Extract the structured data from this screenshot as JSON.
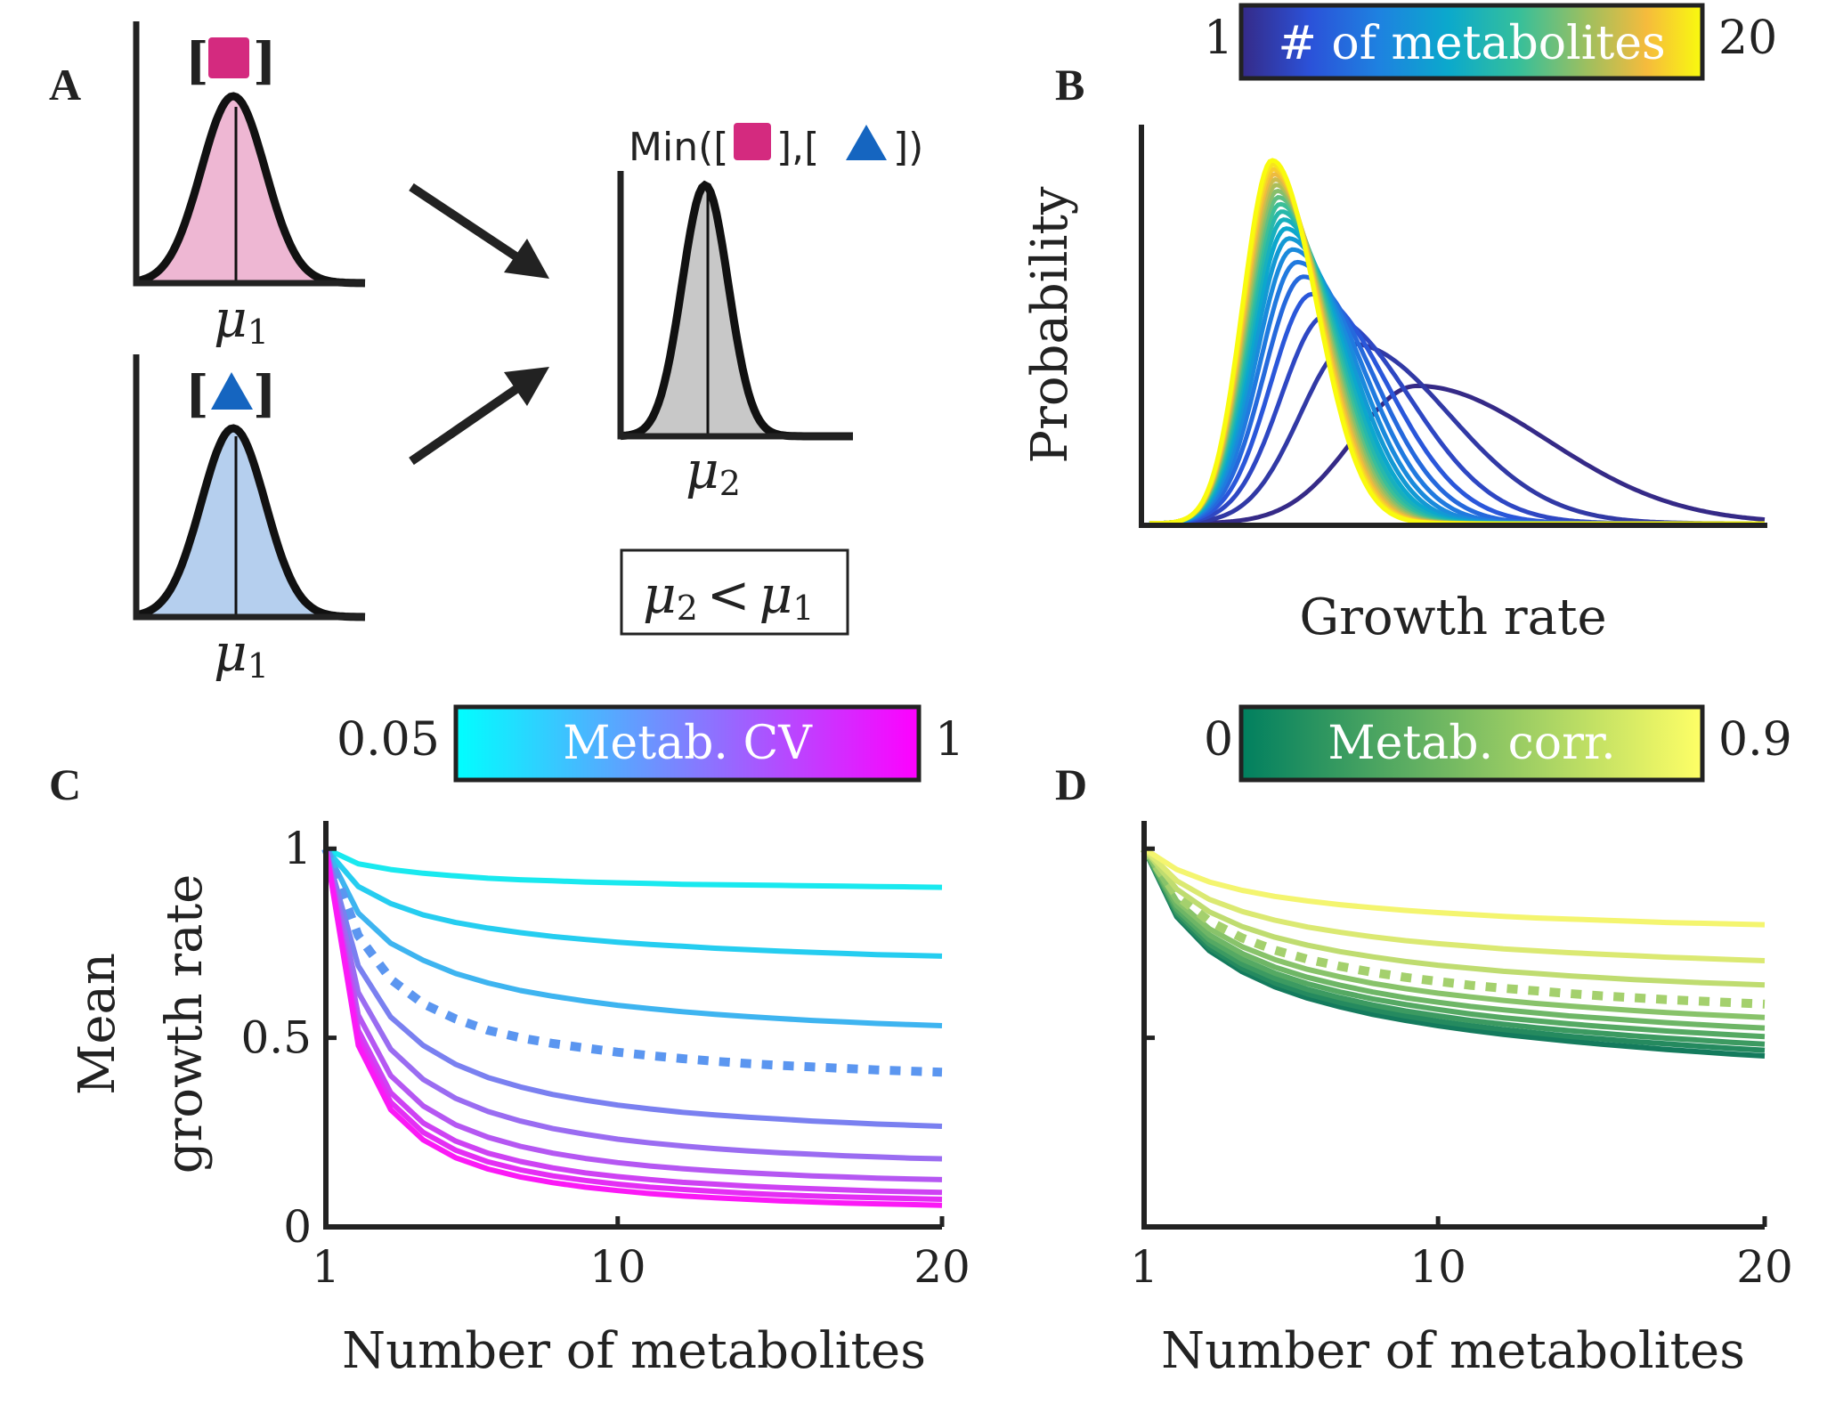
{
  "panels": {
    "A": {
      "letter": "A",
      "top_label": "[",
      "top_label_close": "]",
      "bottom_label": "[",
      "bottom_label_close": "]",
      "mu1_top": "μ",
      "mu1_top_sub": "1",
      "mu1_bottom": "μ",
      "mu1_bottom_sub": "1",
      "min_label_start": "Min([",
      "min_label_mid": "],[",
      "min_label_end": "])",
      "mu2": "μ",
      "mu2_sub": "2",
      "inequality_left": "μ",
      "inequality_left_sub": "2",
      "inequality_op": "<",
      "inequality_right": "μ",
      "inequality_right_sub": "1",
      "colors": {
        "pink": "#d42a7f",
        "pink_fill": "#eeb7d3",
        "blue": "#1565c0",
        "blue_fill": "#b5cfee",
        "gray_fill": "#c8c8c8"
      },
      "icons": [
        "square-icon",
        "triangle-icon",
        "arrow-icon"
      ]
    },
    "B": {
      "letter": "B",
      "colorbar": {
        "min": "1",
        "max": "20",
        "label": "# of metabolites"
      },
      "chart_data": {
        "type": "line",
        "xlabel": "Growth rate",
        "ylabel": "Probability",
        "series_count": 20,
        "colormap": "parula",
        "n_range": [
          1,
          20
        ],
        "note_axes": "no tick labels"
      }
    },
    "C": {
      "letter": "C",
      "colorbar": {
        "min": "0.05",
        "max": "1",
        "label": "Metab. CV"
      },
      "chart_data": {
        "type": "line",
        "xlabel": "Number of metabolites",
        "ylabel_line1": "Mean",
        "ylabel_line2": "growth rate",
        "xlim": [
          1,
          20
        ],
        "ylim": [
          0,
          1.05
        ],
        "xticks": [
          "1",
          "10",
          "20"
        ],
        "yticks": [
          "0",
          "0.5",
          "1"
        ],
        "x": [
          1,
          2,
          3,
          4,
          5,
          6,
          7,
          8,
          9,
          10,
          11,
          12,
          13,
          14,
          15,
          16,
          17,
          18,
          19,
          20
        ],
        "series": [
          {
            "color": "#19e9ef",
            "dashed": false,
            "values": [
              1.0,
              0.96,
              0.945,
              0.935,
              0.928,
              0.922,
              0.918,
              0.915,
              0.912,
              0.91,
              0.908,
              0.906,
              0.905,
              0.904,
              0.903,
              0.902,
              0.901,
              0.9,
              0.899,
              0.898
            ]
          },
          {
            "color": "#25cdf0",
            "dashed": false,
            "values": [
              1.0,
              0.9,
              0.855,
              0.825,
              0.805,
              0.79,
              0.778,
              0.768,
              0.76,
              0.753,
              0.747,
              0.742,
              0.737,
              0.733,
              0.729,
              0.726,
              0.723,
              0.72,
              0.718,
              0.716
            ]
          },
          {
            "color": "#3eb4f0",
            "dashed": false,
            "values": [
              1.0,
              0.83,
              0.75,
              0.705,
              0.67,
              0.645,
              0.625,
              0.61,
              0.597,
              0.586,
              0.577,
              0.569,
              0.562,
              0.556,
              0.551,
              0.546,
              0.542,
              0.538,
              0.535,
              0.532
            ]
          },
          {
            "color": "#5b96f0",
            "dashed": true,
            "values": [
              1.0,
              0.77,
              0.655,
              0.59,
              0.55,
              0.52,
              0.5,
              0.485,
              0.473,
              0.462,
              0.453,
              0.445,
              0.438,
              0.432,
              0.427,
              0.423,
              0.419,
              0.415,
              0.412,
              0.409
            ]
          },
          {
            "color": "#7a80f0",
            "dashed": false,
            "values": [
              1.0,
              0.69,
              0.555,
              0.48,
              0.43,
              0.395,
              0.37,
              0.35,
              0.335,
              0.322,
              0.312,
              0.303,
              0.296,
              0.29,
              0.285,
              0.28,
              0.276,
              0.272,
              0.269,
              0.266
            ]
          },
          {
            "color": "#9a6cf1",
            "dashed": false,
            "values": [
              1.0,
              0.62,
              0.47,
              0.39,
              0.34,
              0.305,
              0.28,
              0.26,
              0.245,
              0.232,
              0.222,
              0.214,
              0.207,
              0.201,
              0.196,
              0.192,
              0.188,
              0.185,
              0.182,
              0.18
            ]
          },
          {
            "color": "#b557f2",
            "dashed": false,
            "values": [
              1.0,
              0.56,
              0.4,
              0.32,
              0.27,
              0.237,
              0.213,
              0.195,
              0.181,
              0.17,
              0.161,
              0.154,
              0.148,
              0.143,
              0.139,
              0.135,
              0.132,
              0.129,
              0.127,
              0.125
            ]
          },
          {
            "color": "#ce42f3",
            "dashed": false,
            "values": [
              1.0,
              0.52,
              0.355,
              0.275,
              0.227,
              0.195,
              0.173,
              0.156,
              0.143,
              0.133,
              0.125,
              0.118,
              0.113,
              0.108,
              0.104,
              0.101,
              0.098,
              0.095,
              0.093,
              0.091
            ]
          },
          {
            "color": "#e42ef4",
            "dashed": false,
            "values": [
              1.0,
              0.5,
              0.33,
              0.25,
              0.203,
              0.172,
              0.151,
              0.135,
              0.123,
              0.113,
              0.105,
              0.099,
              0.094,
              0.089,
              0.085,
              0.082,
              0.079,
              0.077,
              0.075,
              0.073
            ]
          },
          {
            "color": "#fb19f6",
            "dashed": false,
            "values": [
              1.0,
              0.48,
              0.31,
              0.23,
              0.183,
              0.153,
              0.132,
              0.117,
              0.105,
              0.096,
              0.088,
              0.082,
              0.077,
              0.073,
              0.069,
              0.066,
              0.063,
              0.061,
              0.059,
              0.057
            ]
          }
        ]
      }
    },
    "D": {
      "letter": "D",
      "colorbar": {
        "min": "0",
        "max": "0.9",
        "label": "Metab. corr."
      },
      "chart_data": {
        "type": "line",
        "xlabel": "Number of metabolites",
        "xlim": [
          1,
          20
        ],
        "ylim": [
          0,
          1.05
        ],
        "xticks": [
          "1",
          "10",
          "20"
        ],
        "x": [
          1,
          2,
          3,
          4,
          5,
          6,
          7,
          8,
          9,
          10,
          11,
          12,
          13,
          14,
          15,
          16,
          17,
          18,
          19,
          20
        ],
        "series": [
          {
            "color": "#147b5d",
            "dashed": false,
            "values": [
              1.0,
              0.82,
              0.73,
              0.675,
              0.635,
              0.605,
              0.582,
              0.562,
              0.546,
              0.532,
              0.52,
              0.509,
              0.5,
              0.491,
              0.483,
              0.476,
              0.469,
              0.463,
              0.457,
              0.452
            ]
          },
          {
            "color": "#258a5f",
            "dashed": false,
            "values": [
              1.0,
              0.825,
              0.738,
              0.684,
              0.645,
              0.616,
              0.593,
              0.574,
              0.558,
              0.544,
              0.532,
              0.522,
              0.513,
              0.504,
              0.497,
              0.49,
              0.484,
              0.478,
              0.472,
              0.467
            ]
          },
          {
            "color": "#3c9a61",
            "dashed": false,
            "values": [
              1.0,
              0.832,
              0.748,
              0.695,
              0.657,
              0.628,
              0.606,
              0.587,
              0.571,
              0.558,
              0.546,
              0.536,
              0.527,
              0.519,
              0.512,
              0.505,
              0.499,
              0.494,
              0.488,
              0.483
            ]
          },
          {
            "color": "#55a963",
            "dashed": false,
            "values": [
              1.0,
              0.84,
              0.759,
              0.708,
              0.671,
              0.643,
              0.621,
              0.603,
              0.588,
              0.575,
              0.563,
              0.553,
              0.545,
              0.537,
              0.53,
              0.524,
              0.518,
              0.513,
              0.508,
              0.503
            ]
          },
          {
            "color": "#6eb666",
            "dashed": false,
            "values": [
              1.0,
              0.85,
              0.772,
              0.723,
              0.687,
              0.66,
              0.639,
              0.621,
              0.606,
              0.594,
              0.583,
              0.574,
              0.566,
              0.558,
              0.552,
              0.546,
              0.54,
              0.535,
              0.53,
              0.526
            ]
          },
          {
            "color": "#88c36a",
            "dashed": false,
            "values": [
              1.0,
              0.862,
              0.788,
              0.741,
              0.707,
              0.681,
              0.661,
              0.644,
              0.63,
              0.618,
              0.608,
              0.599,
              0.591,
              0.584,
              0.578,
              0.572,
              0.567,
              0.562,
              0.558,
              0.554
            ]
          },
          {
            "color": "#a4d06d",
            "dashed": true,
            "values": [
              1.0,
              0.876,
              0.808,
              0.764,
              0.732,
              0.708,
              0.689,
              0.673,
              0.66,
              0.649,
              0.639,
              0.631,
              0.624,
              0.617,
              0.611,
              0.606,
              0.601,
              0.597,
              0.593,
              0.589
            ]
          },
          {
            "color": "#bfdc70",
            "dashed": false,
            "values": [
              1.0,
              0.893,
              0.833,
              0.794,
              0.766,
              0.745,
              0.728,
              0.714,
              0.702,
              0.692,
              0.684,
              0.676,
              0.67,
              0.664,
              0.659,
              0.654,
              0.65,
              0.646,
              0.643,
              0.64
            ]
          },
          {
            "color": "#dbe972",
            "dashed": false,
            "values": [
              1.0,
              0.915,
              0.866,
              0.834,
              0.811,
              0.793,
              0.779,
              0.767,
              0.757,
              0.749,
              0.742,
              0.735,
              0.73,
              0.725,
              0.721,
              0.717,
              0.713,
              0.71,
              0.707,
              0.704
            ]
          },
          {
            "color": "#f4f56f",
            "dashed": false,
            "values": [
              1.0,
              0.945,
              0.912,
              0.89,
              0.874,
              0.862,
              0.852,
              0.844,
              0.837,
              0.831,
              0.826,
              0.821,
              0.817,
              0.814,
              0.811,
              0.808,
              0.805,
              0.803,
              0.801,
              0.799
            ]
          }
        ]
      }
    }
  }
}
